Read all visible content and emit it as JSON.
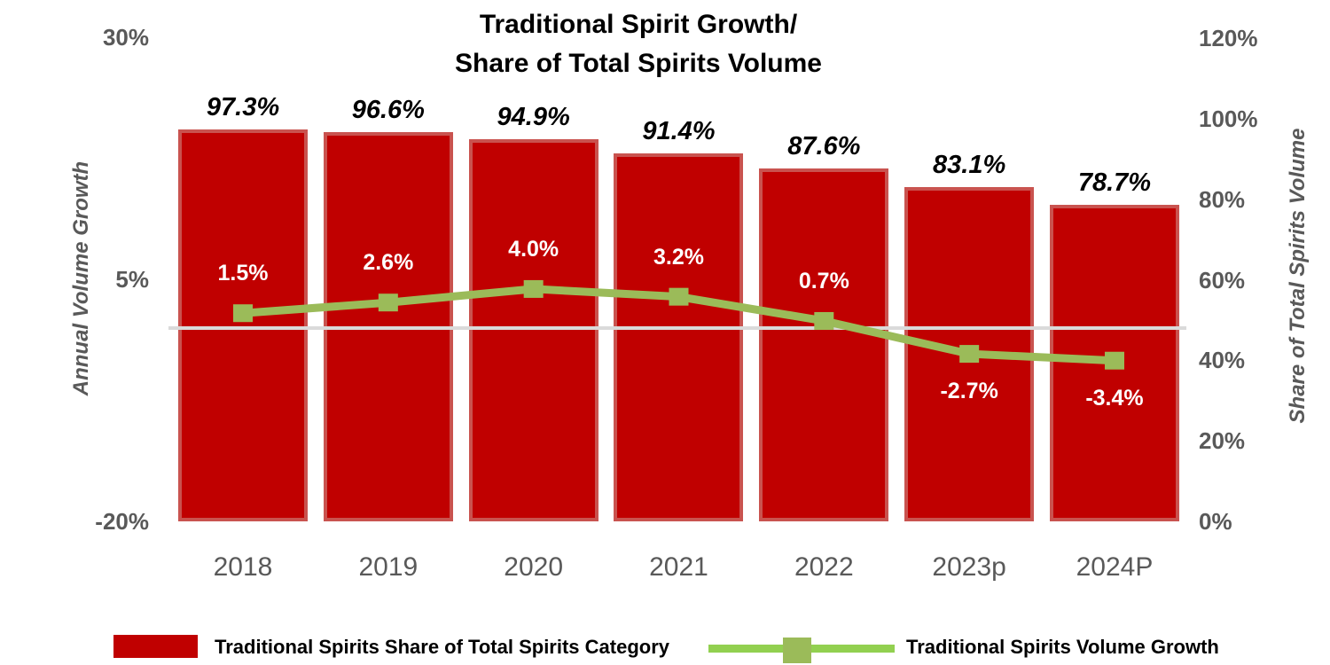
{
  "chart_data": {
    "type": "combo-bar-line",
    "title_lines": [
      "Traditional Spirit Growth/",
      "Share of Total Spirits Volume"
    ],
    "categories": [
      "2018",
      "2019",
      "2020",
      "2021",
      "2022",
      "2023p",
      "2024P"
    ],
    "series": [
      {
        "name": "Traditional Spirits Share of Total Spirits Category",
        "type": "bar",
        "axis": "right",
        "values": [
          97.3,
          96.6,
          94.9,
          91.4,
          87.6,
          83.1,
          78.7
        ],
        "labels": [
          "97.3%",
          "96.6%",
          "94.9%",
          "91.4%",
          "87.6%",
          "83.1%",
          "78.7%"
        ]
      },
      {
        "name": "Traditional Spirits Volume Growth",
        "type": "line",
        "axis": "left",
        "values": [
          1.5,
          2.6,
          4.0,
          3.2,
          0.7,
          -2.7,
          -3.4
        ],
        "labels": [
          "1.5%",
          "2.6%",
          "4.0%",
          "3.2%",
          "0.7%",
          "-2.7%",
          "-3.4%"
        ]
      }
    ],
    "left_axis": {
      "label": "Annual Volume Growth",
      "min": -20,
      "max": 30,
      "ticks": [
        {
          "label": "30%",
          "value": 30
        },
        {
          "label": "5%",
          "value": 5
        },
        {
          "label": "-20%",
          "value": -20
        }
      ]
    },
    "right_axis": {
      "label": "Share of Total Spirits Volume",
      "min": 0,
      "max": 120,
      "ticks": [
        {
          "label": "120%",
          "value": 120
        },
        {
          "label": "100%",
          "value": 100
        },
        {
          "label": "80%",
          "value": 80
        },
        {
          "label": "60%",
          "value": 60
        },
        {
          "label": "40%",
          "value": 40
        },
        {
          "label": "20%",
          "value": 20
        },
        {
          "label": "0%",
          "value": 0
        }
      ]
    },
    "gridline_at_left_value": 0,
    "grid": "zero-line-only",
    "legend_position": "bottom",
    "colors": {
      "bar_fill": "#C00000",
      "bar_border": "#C9534F",
      "line": "#9BBB59",
      "legend_line": "#92D050",
      "gridline": "#DADADA",
      "axis_text": "#595959",
      "bar_value_text": "#FFFFFF",
      "share_value_text": "#000000"
    }
  },
  "legend": {
    "items": [
      {
        "label": "Traditional Spirits Share of Total Spirits Category",
        "swatch": "bar"
      },
      {
        "label": "Traditional Spirits Volume Growth",
        "swatch": "line"
      }
    ]
  }
}
